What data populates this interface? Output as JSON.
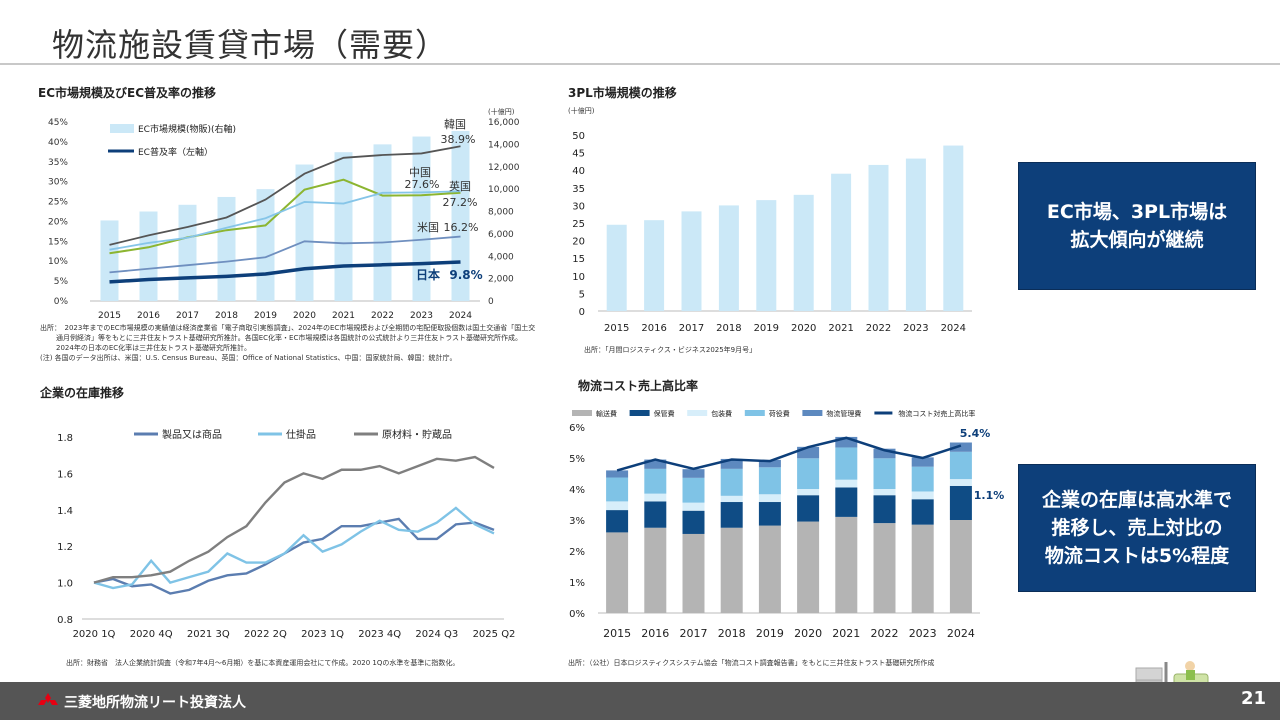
{
  "page": {
    "title": "物流施設賃貸市場（需要）",
    "page_number": "21",
    "footer_company": "三菱地所物流リート投資法人"
  },
  "callouts": {
    "top": [
      "EC市場、3PL市場は",
      "拡大傾向が継続"
    ],
    "bottom": [
      "企業の在庫は高水準で",
      "推移し、売上対比の",
      "物流コストは5%程度"
    ]
  },
  "panels": {
    "ec": {
      "title": "EC市場規模及びEC普及率の推移",
      "source": [
        "出所：　2023年までのEC市場規模の実績値は経済産業省「電子商取引実態調査」、2024年のEC市場規模および全期間の宅配便取扱個数は国土交通省「国土交",
        "通月例経済」等をもとに三井住友トラスト基礎研究所推計。各国EC化率・EC市場規模は各国統計の公式統計より三井住友トラスト基礎研究所作成。",
        "2024年の日本のEC化率は三井住友トラスト基礎研究所推計。",
        "(注) 各国のデータ出所は、米国：U.S. Census Bureau、英国：Office of National Statistics、中国：国家統計局、韓国：統計庁。"
      ]
    },
    "tpl": {
      "title": "3PL市場規模の推移",
      "source": [
        "出所：「月間ロジスティクス・ビジネス2025年9月号」"
      ]
    },
    "inv": {
      "title": "企業の在庫推移",
      "source": [
        "出所：財務省　法人企業統計調査（令和7年4月～6月期）を基に本資産運用会社にて作成。2020 1Qの水準を基準に指数化。"
      ]
    },
    "cost": {
      "title": "物流コスト売上高比率",
      "source": [
        "出所：（公社）日本ロジスティクスシステム協会「物流コスト調査報告書」をもとに三井住友トラスト基礎研究所作成"
      ]
    }
  },
  "chart_data": [
    {
      "type": "bar",
      "categories": [
        "2015",
        "2016",
        "2017",
        "2018",
        "2019",
        "2020",
        "2021",
        "2022",
        "2023",
        "2024"
      ],
      "y_right_unit": "(十億円)",
      "ylim_left": [
        0,
        45
      ],
      "ylim_right": [
        0,
        16000
      ],
      "y_left_ticks": [
        "0%",
        "5%",
        "10%",
        "15%",
        "20%",
        "25%",
        "30%",
        "35%",
        "40%",
        "45%"
      ],
      "y_right_ticks": [
        "0",
        "2,000",
        "4,000",
        "6,000",
        "8,000",
        "10,000",
        "12,000",
        "14,000",
        "16,000"
      ],
      "series": [
        {
          "name": "EC市場規模(物販)(右軸)",
          "kind": "bar",
          "axis": "right",
          "values": [
            7200,
            8000,
            8600,
            9300,
            10000,
            12200,
            13300,
            14000,
            14700,
            15200
          ]
        },
        {
          "name": "EC普及率（左軸）",
          "kind": "line",
          "axis": "left",
          "values": [
            4.8,
            5.4,
            5.8,
            6.2,
            6.8,
            8.1,
            8.8,
            9.1,
            9.4,
            9.8
          ]
        },
        {
          "kind": "line",
          "axis": "left",
          "values": [
            14.1,
            16.5,
            18.6,
            21.0,
            25.5,
            32.0,
            36.0,
            36.7,
            37.1,
            38.9
          ]
        },
        {
          "kind": "line",
          "axis": "left",
          "values": [
            12.9,
            14.6,
            15.9,
            18.4,
            20.8,
            24.9,
            24.5,
            27.2,
            27.3,
            27.6
          ]
        },
        {
          "kind": "line",
          "axis": "left",
          "values": [
            12.0,
            13.5,
            16.0,
            17.8,
            19.0,
            28.0,
            30.5,
            26.5,
            26.6,
            27.2
          ]
        },
        {
          "kind": "line",
          "axis": "left",
          "values": [
            7.2,
            8.1,
            9.0,
            9.9,
            11.0,
            15.0,
            14.5,
            14.7,
            15.4,
            16.2
          ]
        }
      ],
      "annotations": [
        {
          "label": "韓国",
          "value": "38.9%"
        },
        {
          "label": "中国",
          "value": "27.6%"
        },
        {
          "label": "英国",
          "value": "27.2%"
        },
        {
          "label": "米国",
          "value": "16.2%"
        },
        {
          "label": "日本",
          "value": "9.8%"
        }
      ]
    },
    {
      "type": "bar",
      "categories": [
        "2015",
        "2016",
        "2017",
        "2018",
        "2019",
        "2020",
        "2021",
        "2022",
        "2023",
        "2024"
      ],
      "y_unit": "(十億円)",
      "ylim": [
        0,
        50
      ],
      "y_ticks": [
        "0",
        "5",
        "10",
        "15",
        "20",
        "25",
        "30",
        "35",
        "40",
        "45",
        "50"
      ],
      "values": [
        24.5,
        25.8,
        28.3,
        30.0,
        31.5,
        33.0,
        39.0,
        41.5,
        43.3,
        47.0
      ]
    },
    {
      "type": "line",
      "categories": [
        "2020 1Q",
        "2020 2Q",
        "2020 3Q",
        "2020 4Q",
        "2021 1Q",
        "2021 2Q",
        "2021 3Q",
        "2021 4Q",
        "2022 1Q",
        "2022 2Q",
        "2022 3Q",
        "2022 4Q",
        "2023 1Q",
        "2023 2Q",
        "2023 3Q",
        "2023 4Q",
        "2024 1Q",
        "2024 2Q",
        "2024 Q3",
        "2024 4Q",
        "2025 1Q",
        "2025 Q2"
      ],
      "x_tick_labels": [
        "2020 1Q",
        "2020 4Q",
        "2021 3Q",
        "2022 2Q",
        "2023 1Q",
        "2023 4Q",
        "2024 Q3",
        "2025 Q2"
      ],
      "ylim": [
        0.8,
        1.8
      ],
      "y_ticks": [
        "0.8",
        "1.0",
        "1.2",
        "1.4",
        "1.6",
        "1.8"
      ],
      "series": [
        {
          "name": "製品又は商品",
          "color": "#5b7db0",
          "values": [
            1.0,
            1.02,
            0.98,
            0.99,
            0.94,
            0.96,
            1.01,
            1.04,
            1.05,
            1.1,
            1.16,
            1.22,
            1.24,
            1.31,
            1.31,
            1.33,
            1.35,
            1.24,
            1.24,
            1.32,
            1.33,
            1.29
          ]
        },
        {
          "name": "仕掛品",
          "color": "#7fc3e6",
          "values": [
            1.0,
            0.97,
            0.99,
            1.12,
            1.0,
            1.03,
            1.06,
            1.16,
            1.11,
            1.11,
            1.16,
            1.26,
            1.17,
            1.21,
            1.28,
            1.34,
            1.29,
            1.28,
            1.33,
            1.41,
            1.32,
            1.27
          ]
        },
        {
          "name": "原材料・貯蔵品",
          "color": "#7f7f7f",
          "values": [
            1.0,
            1.03,
            1.03,
            1.04,
            1.06,
            1.12,
            1.17,
            1.25,
            1.31,
            1.44,
            1.55,
            1.6,
            1.57,
            1.62,
            1.62,
            1.64,
            1.6,
            1.64,
            1.68,
            1.67,
            1.69,
            1.63
          ]
        }
      ]
    },
    {
      "type": "bar",
      "stacked": true,
      "categories": [
        "2015",
        "2016",
        "2017",
        "2018",
        "2019",
        "2020",
        "2021",
        "2022",
        "2023",
        "2024"
      ],
      "ylim": [
        0,
        6
      ],
      "y_ticks": [
        "0%",
        "1%",
        "2%",
        "3%",
        "4%",
        "5%",
        "6%"
      ],
      "series": [
        {
          "name": "輸送費",
          "color": "#b4b4b4",
          "values": [
            2.6,
            2.75,
            2.55,
            2.75,
            2.82,
            2.95,
            3.1,
            2.9,
            2.85,
            3.0
          ]
        },
        {
          "name": "保管費",
          "color": "#0f4c85",
          "values": [
            0.72,
            0.85,
            0.75,
            0.83,
            0.76,
            0.85,
            0.95,
            0.9,
            0.82,
            1.1
          ]
        },
        {
          "name": "包装費",
          "color": "#d7eefa",
          "values": [
            0.28,
            0.25,
            0.26,
            0.2,
            0.25,
            0.2,
            0.25,
            0.2,
            0.25,
            0.22
          ]
        },
        {
          "name": "荷役費",
          "color": "#7fc3e6",
          "values": [
            0.77,
            0.8,
            0.8,
            0.87,
            0.87,
            0.99,
            1.04,
            0.99,
            0.8,
            0.88
          ]
        },
        {
          "name": "物流管理費",
          "color": "#5d89bf",
          "values": [
            0.23,
            0.3,
            0.28,
            0.32,
            0.24,
            0.37,
            0.34,
            0.31,
            0.3,
            0.3
          ]
        },
        {
          "name": "物流コスト対売上高比率",
          "color": "#0d3f7a",
          "kind": "line",
          "values": [
            4.6,
            4.95,
            4.65,
            4.95,
            4.9,
            5.35,
            5.65,
            5.25,
            5.0,
            5.4
          ]
        }
      ],
      "annotations": [
        {
          "label": "5.4%"
        },
        {
          "label": "1.1%"
        }
      ]
    }
  ]
}
